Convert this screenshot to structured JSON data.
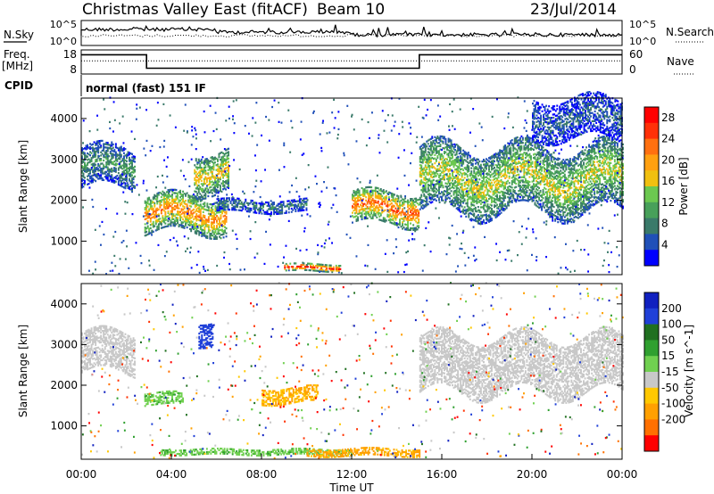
{
  "header": {
    "station": "Christmas Valley East (fitACF)",
    "beam": "Beam 10",
    "date": "23/Jul/2014"
  },
  "top_panels": {
    "nsky_label": "N.Sky",
    "nsky_ticks": [
      "10^5",
      "10^0"
    ],
    "nsearch_label": "N.Search",
    "nsearch_ticks": [
      "10^5",
      "10^0"
    ],
    "freq_label": "Freq.",
    "freq_unit": "[MHz]",
    "freq_ticks": [
      "18",
      "8"
    ],
    "nave_label": "Nave",
    "nave_ticks": [
      "60",
      "0"
    ],
    "cpid_label": "CPID",
    "cpid_value": "normal (fast) 151 IF"
  },
  "colors": {
    "power_scale": [
      "#0000ff",
      "#2050b8",
      "#3a7a6a",
      "#48a05a",
      "#6cc850",
      "#f0c010",
      "#ffa010",
      "#ff7010",
      "#ff3008",
      "#ff0000"
    ],
    "velocity_scale": [
      "#1020c0",
      "#2040d8",
      "#207020",
      "#30a030",
      "#70d050",
      "#c8c8c8",
      "#c8c8c8",
      "#ffc800",
      "#ffa000",
      "#ff7000",
      "#ff3000",
      "#ff0000"
    ]
  },
  "chart_data": [
    {
      "type": "heatmap",
      "ylabel": "Slant Range [km]",
      "xlabel": "",
      "ylim": [
        180,
        4500
      ],
      "xlim": [
        0,
        24
      ],
      "yticks": [
        "1000",
        "2000",
        "3000",
        "4000"
      ],
      "colorbar_label": "Power [dB]",
      "colorbar_ticks": [
        "4",
        "8",
        "12",
        "16",
        "20",
        "24",
        "28"
      ],
      "colorbar_range": [
        0,
        30
      ],
      "features": [
        {
          "t0": 0.0,
          "t1": 2.4,
          "r0": 2300,
          "r1": 3300,
          "level": 10
        },
        {
          "t0": 2.8,
          "t1": 6.4,
          "r0": 1200,
          "r1": 2100,
          "level": 22
        },
        {
          "t0": 5.0,
          "t1": 6.5,
          "r0": 2200,
          "r1": 3200,
          "level": 18
        },
        {
          "t0": 6.0,
          "t1": 10.0,
          "r0": 1700,
          "r1": 2000,
          "level": 8
        },
        {
          "t0": 9.0,
          "t1": 11.5,
          "r0": 250,
          "r1": 420,
          "level": 28
        },
        {
          "t0": 12.0,
          "t1": 15.0,
          "r0": 1400,
          "r1": 2200,
          "level": 24
        },
        {
          "t0": 15.0,
          "t1": 24.0,
          "r0": 1700,
          "r1": 3300,
          "level": 16
        },
        {
          "t0": 20.0,
          "t1": 24.0,
          "r0": 3500,
          "r1": 4500,
          "level": 6
        }
      ]
    },
    {
      "type": "heatmap",
      "ylabel": "Slant Range [km]",
      "xlabel": "Time UT",
      "ylim": [
        180,
        4500
      ],
      "xlim": [
        0,
        24
      ],
      "yticks": [
        "1000",
        "2000",
        "3000",
        "4000"
      ],
      "xticks": [
        "00:00",
        "04:00",
        "08:00",
        "12:00",
        "16:00",
        "20:00",
        "00:00"
      ],
      "colorbar_label": "Velocity [m s^-1]",
      "colorbar_ticks": [
        "200",
        "100",
        "50",
        "15",
        "-15",
        "-50",
        "-100",
        "-200"
      ],
      "colorbar_range": [
        -250,
        250
      ],
      "features": [
        {
          "t0": 0.0,
          "t1": 2.4,
          "r0": 2300,
          "r1": 3300,
          "velocity": 0
        },
        {
          "t0": 2.8,
          "t1": 4.5,
          "r0": 1500,
          "r1": 1800,
          "velocity": 40
        },
        {
          "t0": 5.2,
          "t1": 5.8,
          "r0": 3000,
          "r1": 3600,
          "velocity": 180
        },
        {
          "t0": 8.0,
          "t1": 10.5,
          "r0": 1550,
          "r1": 1950,
          "velocity": -50
        },
        {
          "t0": 3.5,
          "t1": 12.0,
          "r0": 280,
          "r1": 420,
          "velocity": 40
        },
        {
          "t0": 10.0,
          "t1": 15.0,
          "r0": 250,
          "r1": 450,
          "velocity": -60
        },
        {
          "t0": 15.0,
          "t1": 24.0,
          "r0": 1800,
          "r1": 3200,
          "velocity": 0
        }
      ]
    }
  ]
}
